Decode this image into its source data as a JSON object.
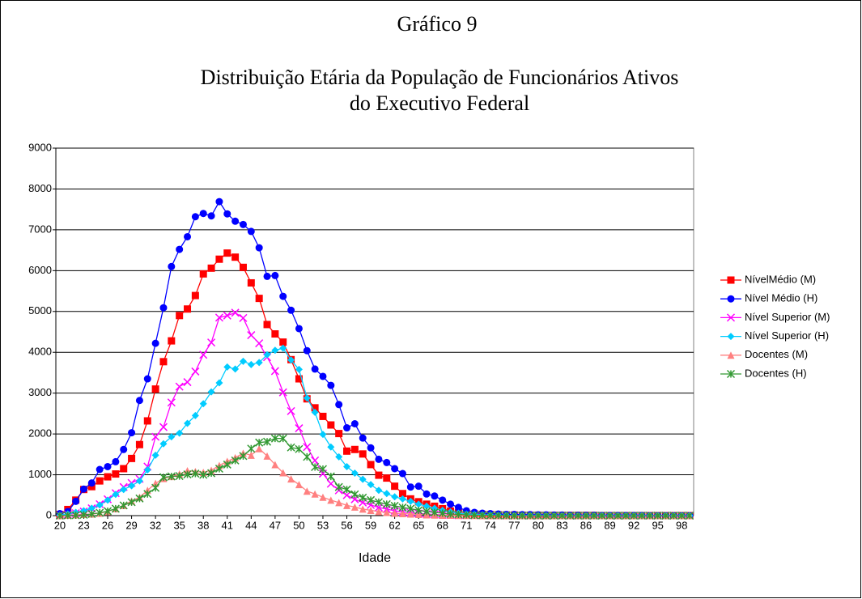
{
  "chart_data": {
    "type": "line",
    "supertitle": "Gráfico 9",
    "title": [
      "Distribuição Etária da População de Funcionários Ativos",
      "do Executivo Federal"
    ],
    "xlabel": "Idade",
    "x": [
      20,
      21,
      22,
      23,
      24,
      25,
      26,
      27,
      28,
      29,
      30,
      31,
      32,
      33,
      34,
      35,
      36,
      37,
      38,
      39,
      40,
      41,
      42,
      43,
      44,
      45,
      46,
      47,
      48,
      49,
      50,
      51,
      52,
      53,
      54,
      55,
      56,
      57,
      58,
      59,
      60,
      61,
      62,
      63,
      64,
      65,
      66,
      67,
      68,
      69,
      70,
      71,
      72,
      73,
      74,
      75,
      76,
      77,
      78,
      79,
      80,
      81,
      82,
      83,
      84,
      85,
      86,
      87,
      88,
      89,
      90,
      91,
      92,
      93,
      94,
      95,
      96,
      97,
      98,
      99
    ],
    "xlim": [
      19.5,
      99.5
    ],
    "xticks": [
      20,
      23,
      26,
      29,
      32,
      35,
      38,
      41,
      44,
      47,
      50,
      53,
      56,
      59,
      62,
      65,
      68,
      71,
      74,
      77,
      80,
      83,
      86,
      89,
      92,
      95,
      98
    ],
    "ylim": [
      0,
      9000
    ],
    "yticks": [
      0,
      1000,
      2000,
      3000,
      4000,
      5000,
      6000,
      7000,
      8000,
      9000
    ],
    "grid": true,
    "legend": "right",
    "series": [
      {
        "name": "NívelMédio (M)",
        "color": "#ff0000",
        "marker": "square",
        "values": [
          30,
          150,
          380,
          640,
          710,
          850,
          950,
          1020,
          1150,
          1400,
          1740,
          2320,
          3100,
          3770,
          4280,
          4900,
          5060,
          5390,
          5920,
          6060,
          6280,
          6430,
          6330,
          6080,
          5700,
          5320,
          4680,
          4450,
          4250,
          3820,
          3350,
          2860,
          2640,
          2430,
          2220,
          2010,
          1580,
          1620,
          1510,
          1250,
          990,
          920,
          720,
          540,
          410,
          340,
          280,
          230,
          170,
          110,
          70,
          50,
          40,
          30,
          25,
          20,
          15,
          15,
          10,
          10,
          10,
          5,
          5,
          5,
          5,
          5,
          5,
          5,
          0,
          0,
          0,
          0,
          0,
          0,
          0,
          0,
          0,
          0,
          0,
          0
        ]
      },
      {
        "name": "Nível Médio (H)",
        "color": "#0000ff",
        "marker": "circle",
        "values": [
          50,
          100,
          350,
          650,
          800,
          1130,
          1200,
          1320,
          1620,
          2030,
          2820,
          3350,
          4220,
          5090,
          6100,
          6520,
          6830,
          7320,
          7400,
          7340,
          7690,
          7390,
          7210,
          7130,
          6960,
          6560,
          5860,
          5880,
          5370,
          5030,
          4580,
          4040,
          3590,
          3410,
          3190,
          2720,
          2150,
          2250,
          1900,
          1660,
          1380,
          1300,
          1150,
          1030,
          700,
          720,
          530,
          480,
          380,
          280,
          200,
          120,
          80,
          60,
          50,
          40,
          30,
          30,
          25,
          25,
          20,
          20,
          15,
          15,
          10,
          10,
          10,
          10,
          5,
          5,
          5,
          5,
          5,
          5,
          0,
          0,
          0,
          0,
          0,
          0
        ]
      },
      {
        "name": "Nível Superior (M)",
        "color": "#ff00ff",
        "marker": "x",
        "values": [
          10,
          30,
          60,
          100,
          180,
          280,
          400,
          550,
          700,
          800,
          900,
          1200,
          1930,
          2170,
          2770,
          3160,
          3270,
          3530,
          3940,
          4240,
          4850,
          4900,
          4970,
          4840,
          4420,
          4220,
          3880,
          3540,
          3020,
          2560,
          2140,
          1680,
          1350,
          1030,
          780,
          620,
          500,
          400,
          320,
          260,
          200,
          160,
          120,
          90,
          70,
          55,
          40,
          30,
          20,
          15,
          10,
          10,
          5,
          5,
          5,
          5,
          0,
          0,
          0,
          0,
          0,
          0,
          0,
          0,
          0,
          0,
          0,
          0,
          0,
          0,
          0,
          0,
          0,
          0,
          0,
          0,
          0,
          0,
          0,
          0
        ]
      },
      {
        "name": "Nível Superior (H)",
        "color": "#00ccff",
        "marker": "diamond",
        "values": [
          10,
          40,
          80,
          120,
          180,
          260,
          380,
          520,
          640,
          730,
          850,
          1120,
          1480,
          1760,
          1930,
          2020,
          2260,
          2450,
          2740,
          3030,
          3250,
          3640,
          3590,
          3780,
          3700,
          3750,
          3940,
          4050,
          4100,
          3810,
          3580,
          2880,
          2530,
          1990,
          1680,
          1440,
          1200,
          1040,
          890,
          760,
          620,
          540,
          460,
          410,
          350,
          280,
          230,
          180,
          130,
          90,
          60,
          40,
          30,
          20,
          15,
          10,
          10,
          5,
          5,
          5,
          5,
          5,
          0,
          0,
          0,
          0,
          0,
          0,
          0,
          0,
          0,
          0,
          0,
          0,
          0,
          0,
          0,
          0,
          0,
          0
        ]
      },
      {
        "name": "Docentes (M)",
        "color": "#ff8080",
        "marker": "triangle",
        "values": [
          0,
          10,
          20,
          30,
          40,
          60,
          100,
          170,
          250,
          360,
          450,
          620,
          790,
          910,
          960,
          1020,
          1100,
          1080,
          1060,
          1110,
          1230,
          1330,
          1420,
          1530,
          1480,
          1640,
          1460,
          1250,
          1050,
          900,
          760,
          600,
          530,
          450,
          380,
          320,
          250,
          210,
          160,
          130,
          100,
          80,
          60,
          50,
          40,
          30,
          20,
          15,
          10,
          10,
          5,
          5,
          5,
          0,
          0,
          0,
          0,
          0,
          0,
          0,
          0,
          0,
          0,
          0,
          0,
          0,
          0,
          0,
          0,
          0,
          0,
          0,
          0,
          0,
          0,
          0,
          0,
          0,
          0,
          0
        ]
      },
      {
        "name": "Docentes (H)",
        "color": "#339933",
        "marker": "star",
        "values": [
          0,
          5,
          10,
          20,
          40,
          70,
          110,
          170,
          250,
          330,
          420,
          530,
          680,
          940,
          960,
          970,
          1010,
          1030,
          1000,
          1040,
          1150,
          1250,
          1350,
          1460,
          1640,
          1790,
          1810,
          1890,
          1890,
          1670,
          1630,
          1440,
          1190,
          1140,
          960,
          700,
          640,
          520,
          440,
          380,
          330,
          280,
          240,
          200,
          170,
          130,
          100,
          80,
          60,
          40,
          30,
          20,
          10,
          10,
          5,
          5,
          5,
          0,
          0,
          0,
          0,
          0,
          0,
          0,
          0,
          0,
          0,
          0,
          0,
          0,
          0,
          0,
          0,
          0,
          0,
          0,
          0,
          0,
          0,
          0
        ]
      }
    ]
  }
}
